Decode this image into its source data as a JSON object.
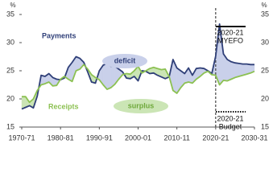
{
  "chart_data": {
    "type": "line",
    "y_unit": "%",
    "y2_unit": "%",
    "categories": [
      "1970-71",
      null,
      null,
      null,
      null,
      null,
      null,
      null,
      null,
      null,
      "1980-81",
      null,
      null,
      null,
      null,
      null,
      null,
      null,
      null,
      null,
      "1990-91",
      null,
      null,
      null,
      null,
      null,
      null,
      null,
      null,
      null,
      "2000-01",
      null,
      null,
      null,
      null,
      null,
      null,
      null,
      null,
      null,
      "2010-11",
      null,
      null,
      null,
      null,
      null,
      null,
      null,
      null,
      null,
      "2020-21",
      null,
      null,
      null,
      null,
      null,
      null,
      null,
      null,
      null,
      "2030-31"
    ],
    "series": [
      {
        "name": "Payments",
        "color": "#2f3f78",
        "values": [
          18.2,
          18.5,
          18.8,
          18.4,
          20.5,
          24.2,
          24.0,
          24.5,
          23.8,
          23.5,
          23.4,
          23.7,
          25.6,
          26.5,
          27.5,
          27.2,
          26.5,
          24.8,
          23.0,
          22.8,
          25.0,
          26.0,
          26.3,
          25.8,
          25.8,
          25.3,
          24.8,
          23.7,
          23.6,
          24.0,
          23.2,
          25.0,
          24.9,
          24.5,
          24.6,
          24.2,
          23.9,
          23.6,
          23.9,
          27.0,
          25.5,
          25.0,
          24.5,
          25.5,
          24.2,
          25.4,
          25.5,
          25.4,
          25.0,
          24.5,
          27.6,
          33.3,
          28.0,
          27.0,
          26.6,
          26.4,
          26.3,
          26.2,
          26.2,
          26.1,
          26.1
        ]
      },
      {
        "name": "Receipts",
        "color": "#8cc152",
        "values": [
          20.4,
          20.4,
          19.4,
          20.0,
          21.5,
          22.5,
          22.7,
          23.0,
          22.3,
          22.4,
          23.5,
          24.0,
          23.5,
          23.1,
          25.0,
          25.3,
          26.1,
          25.3,
          24.3,
          23.8,
          23.4,
          22.5,
          21.7,
          22.0,
          22.6,
          23.5,
          24.3,
          24.5,
          24.4,
          25.0,
          25.8,
          24.6,
          25.0,
          25.4,
          25.6,
          25.4,
          25.2,
          25.3,
          24.0,
          21.5,
          21.0,
          22.0,
          22.8,
          23.0,
          22.8,
          23.5,
          24.0,
          24.6,
          24.9,
          24.3,
          24.2,
          22.5,
          23.3,
          23.2,
          23.5,
          23.8,
          24.0,
          24.2,
          24.4,
          24.6,
          24.9
        ]
      }
    ],
    "ylim": [
      15,
      35
    ],
    "yticks": [
      15,
      20,
      25,
      30,
      35
    ],
    "y2lim": [
      15,
      35
    ],
    "y2ticks": [
      15,
      20,
      25,
      30,
      35
    ],
    "deficit_color": "#c9d0ea",
    "surplus_color": "#cbe5b5",
    "projection_start": "2020-21",
    "annotations": {
      "deficit": "deficit",
      "surplus": "surplus"
    },
    "legend": {
      "myefo": [
        "2020-21",
        "MYEFO"
      ],
      "budget": [
        "2020-21",
        "Budget"
      ]
    }
  }
}
